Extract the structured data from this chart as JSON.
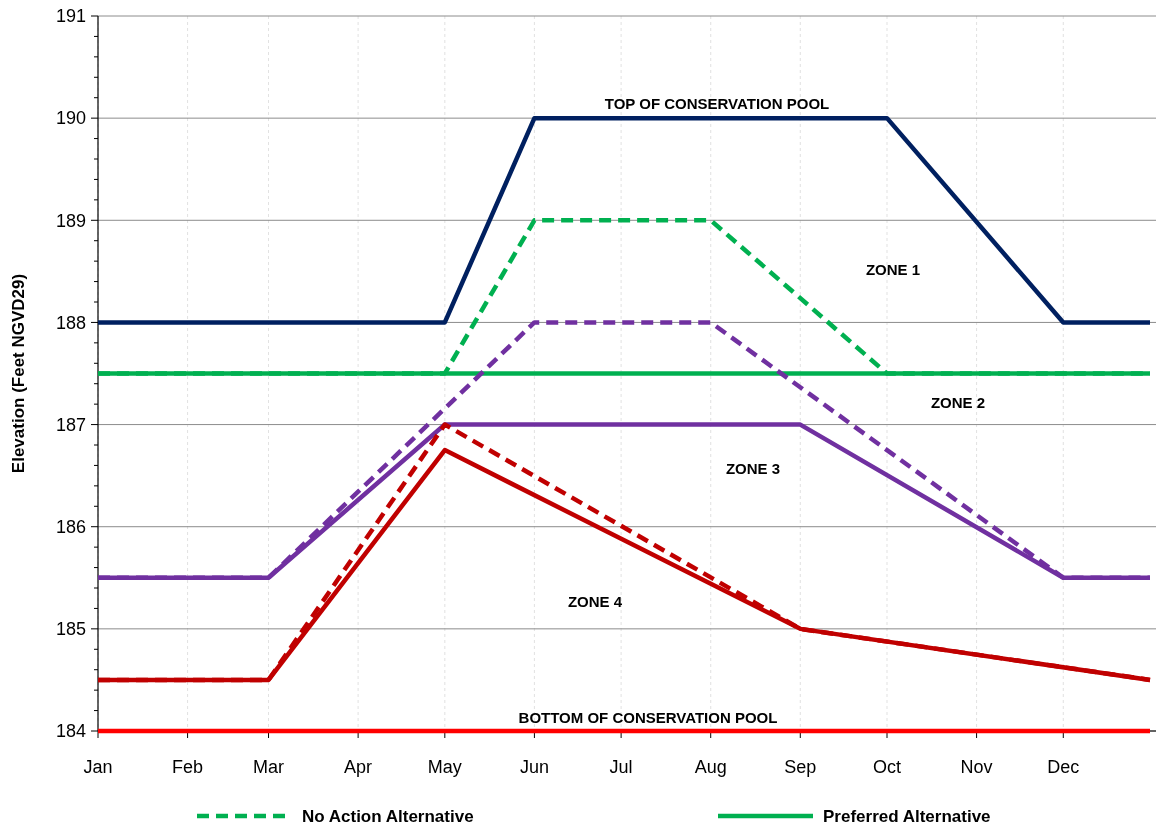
{
  "chart_data": {
    "type": "line",
    "ylabel": "Elevation (Feet NGVD29)",
    "xlim": [
      "--01-01",
      "--12-31"
    ],
    "xticks": [
      {
        "value": "--01-01",
        "label": "Jan"
      },
      {
        "value": "--02-01",
        "label": "Feb"
      },
      {
        "value": "--03-01",
        "label": "Mar"
      },
      {
        "value": "--04-01",
        "label": "Apr"
      },
      {
        "value": "--05-01",
        "label": "May"
      },
      {
        "value": "--06-01",
        "label": "Jun"
      },
      {
        "value": "--07-01",
        "label": "Jul"
      },
      {
        "value": "--08-01",
        "label": "Aug"
      },
      {
        "value": "--09-01",
        "label": "Sep"
      },
      {
        "value": "--10-01",
        "label": "Oct"
      },
      {
        "value": "--11-01",
        "label": "Nov"
      },
      {
        "value": "--12-01",
        "label": "Dec"
      }
    ],
    "ylim": [
      184,
      191
    ],
    "yticks": [
      184,
      {
        "value": 184.2,
        "label": null
      },
      {
        "value": 184.4,
        "label": null
      },
      {
        "value": 184.6,
        "label": null
      },
      {
        "value": 184.8,
        "label": null
      },
      185,
      {
        "value": 185.2,
        "label": null
      },
      {
        "value": 185.4,
        "label": null
      },
      {
        "value": 185.6,
        "label": null
      },
      {
        "value": 185.8,
        "label": null
      },
      186,
      {
        "value": 186.2,
        "label": null
      },
      {
        "value": 186.4,
        "label": null
      },
      {
        "value": 186.6,
        "label": null
      },
      {
        "value": 186.8,
        "label": null
      },
      187,
      {
        "value": 187.2,
        "label": null
      },
      {
        "value": 187.4,
        "label": null
      },
      {
        "value": 187.6,
        "label": null
      },
      {
        "value": 187.8,
        "label": null
      },
      188,
      {
        "value": 188.2,
        "label": null
      },
      {
        "value": 188.4,
        "label": null
      },
      {
        "value": 188.6,
        "label": null
      },
      {
        "value": 188.8,
        "label": null
      },
      189,
      {
        "value": 189.2,
        "label": null
      },
      {
        "value": 189.4,
        "label": null
      },
      {
        "value": 189.6,
        "label": null
      },
      {
        "value": 189.8,
        "label": null
      },
      190,
      {
        "value": 190.2,
        "label": null
      },
      {
        "value": 190.4,
        "label": null
      },
      {
        "value": 190.6,
        "label": null
      },
      {
        "value": 190.8,
        "label": null
      },
      191
    ],
    "grid": true,
    "legend": "bottom",
    "marker": "none",
    "series": [
      {
        "color": "#ff0000",
        "line_style": "solid",
        "x": [
          "--01-01",
          "--12-31"
        ],
        "values": [
          184,
          184
        ]
      },
      {
        "color": "#002060",
        "line_style": "solid",
        "x": [
          "--01-01",
          "--05-01",
          "--06-01",
          "--10-01",
          "--12-01",
          "--12-31"
        ],
        "values": [
          188,
          188,
          190,
          190,
          188,
          188
        ]
      },
      {
        "name": "No Action Alternative",
        "color": "#00b050",
        "line_style": "dashed",
        "x": [
          "--01-01",
          "--05-01",
          "--06-01",
          "--08-01",
          "--10-01",
          "--12-31"
        ],
        "values": [
          187.5,
          187.5,
          189,
          189,
          187.5,
          187.5
        ]
      },
      {
        "name": "Preferred Alternative",
        "color": "#00b050",
        "line_style": "solid",
        "x": [
          "--01-01",
          "--12-31"
        ],
        "values": [
          187.5,
          187.5
        ]
      },
      {
        "color": "#7030a0",
        "line_style": "dashed",
        "x": [
          "--01-01",
          "--03-01",
          "--06-01",
          "--08-01",
          "--12-01",
          "--12-31"
        ],
        "values": [
          185.5,
          185.5,
          188,
          188,
          185.5,
          185.5
        ]
      },
      {
        "color": "#7030a0",
        "line_style": "solid",
        "x": [
          "--01-01",
          "--03-01",
          "--05-01",
          "--09-01",
          "--12-01",
          "--12-31"
        ],
        "values": [
          185.5,
          185.5,
          187,
          187,
          185.5,
          185.5
        ]
      },
      {
        "color": "#c00000",
        "line_style": "dashed",
        "x": [
          "--01-01",
          "--03-01",
          "--05-01",
          "--09-01",
          "--12-31"
        ],
        "values": [
          184.5,
          184.5,
          187,
          185,
          184.5
        ]
      },
      {
        "color": "#c00000",
        "line_style": "solid",
        "x": [
          "--01-01",
          "--03-01",
          "--05-01",
          "--09-01",
          "--12-31"
        ],
        "values": [
          184.5,
          184.5,
          186.75,
          185,
          184.5
        ]
      }
    ],
    "annotations": [
      "TOP OF CONSERVATION POOL",
      "ZONE 1",
      "ZONE 2",
      "ZONE 3",
      "ZONE 4",
      "BOTTOM OF CONSERVATION POOL"
    ]
  }
}
